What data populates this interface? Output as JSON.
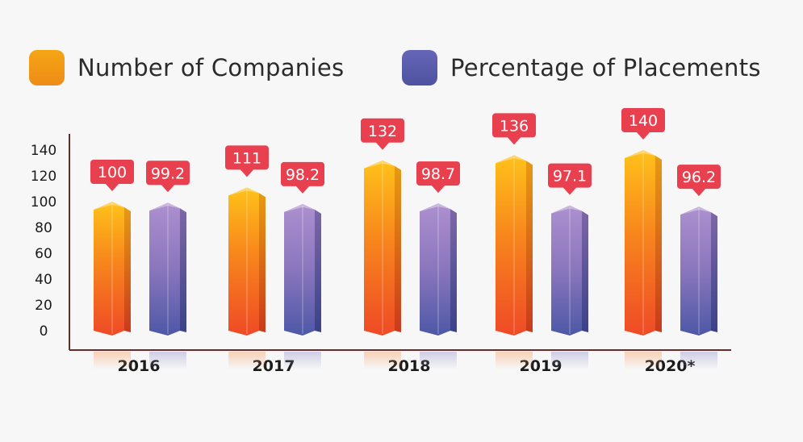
{
  "chart_data": {
    "type": "bar",
    "categories": [
      "2016",
      "2017",
      "2018",
      "2019",
      "2020*"
    ],
    "series": [
      {
        "name": "Number of Companies",
        "values": [
          100,
          111,
          132,
          136,
          140
        ],
        "labels": [
          "100",
          "111",
          "132",
          "136",
          "140"
        ],
        "color": "#f39a12"
      },
      {
        "name": "Percentage of Placements",
        "values": [
          99.2,
          98.2,
          98.7,
          97.1,
          96.2
        ],
        "labels": [
          "99.2",
          "98.2",
          "98.7",
          "97.1",
          "96.2"
        ],
        "color": "#5a5aa8"
      }
    ],
    "yticks": [
      "0",
      "20",
      "40",
      "60",
      "80",
      "100",
      "120",
      "140"
    ],
    "ylim": [
      0,
      140
    ],
    "legend": "top",
    "grid": false
  },
  "colors": {
    "orange_top": "#ffc21a",
    "orange_bottom": "#f04a24",
    "purple_top": "#a58ccc",
    "purple_bottom": "#4a56a4",
    "label_bg": "#e8404e",
    "axis": "#6b2a2a"
  }
}
